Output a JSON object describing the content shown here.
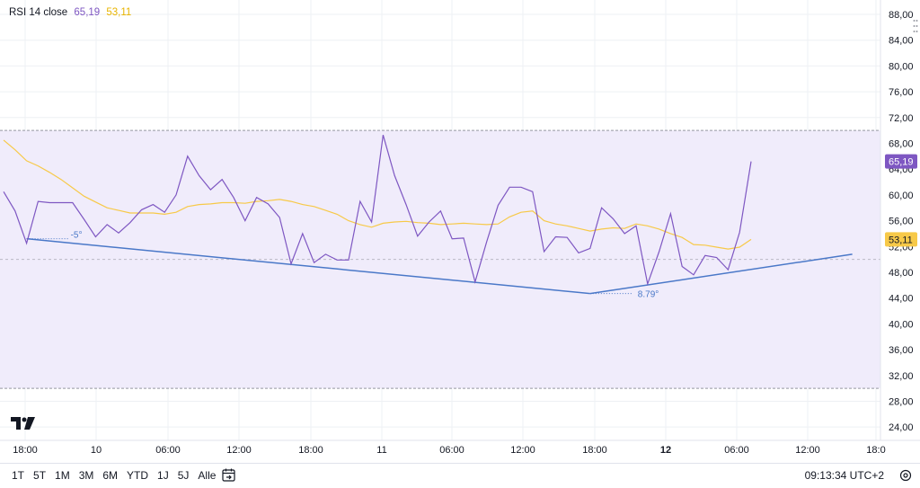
{
  "legend": {
    "label": "RSI 14 close",
    "rsi_value": "65,19",
    "ma_value": "53,11"
  },
  "colors": {
    "rsi": "#7e57c2",
    "ma": "#f7c948",
    "trendline": "#4a78c8",
    "band_fill": "#f0ecfb",
    "band_edge": "#9598a1",
    "grid": "#eef0f4",
    "axis_text": "#131722"
  },
  "badges": {
    "rsi_badge": "65,19",
    "ma_badge": "53,11"
  },
  "annotations": {
    "angle_1": "-5°",
    "angle_2": "8.79°"
  },
  "chart_data": {
    "type": "line",
    "y_ticks": [
      "24,00",
      "28,00",
      "32,00",
      "36,00",
      "40,00",
      "44,00",
      "48,00",
      "52,00",
      "56,00",
      "60,00",
      "64,00",
      "68,00",
      "72,00",
      "76,00",
      "80,00",
      "84,00",
      "88,00"
    ],
    "x_tick_labels": [
      "18:00",
      "10",
      "06:00",
      "12:00",
      "18:00",
      "11",
      "06:00",
      "12:00",
      "18:00",
      "12",
      "06:00",
      "12:00",
      "18:0"
    ],
    "bold_x_ticks": [
      "12"
    ],
    "bands": {
      "upper": 70,
      "lower": 30,
      "middle": 50
    },
    "series": [
      {
        "name": "RSI",
        "values": [
          60.5,
          57.5,
          52.5,
          59,
          58.8,
          58.8,
          58.8,
          56.2,
          53.5,
          55.4,
          54.1,
          55.7,
          57.7,
          58.5,
          57.3,
          60,
          66,
          63,
          60.8,
          62.4,
          59.6,
          56,
          59.6,
          58.6,
          56.5,
          49.3,
          54,
          49.5,
          50.8,
          49.9,
          49.9,
          59,
          55.8,
          69.3,
          63,
          58.5,
          53.6,
          55.8,
          57.5,
          53.2,
          53.3,
          46.5,
          52.7,
          58.4,
          61.2,
          61.2,
          60.5,
          51.2,
          53.5,
          53.4,
          51,
          51.7,
          58,
          56.3,
          54,
          55.2,
          46.2,
          51.2,
          57.1,
          48.9,
          47.6,
          50.6,
          50.3,
          48.4,
          54.2,
          65.2
        ]
      },
      {
        "name": "RSI MA",
        "values": [
          68.5,
          67,
          65.3,
          64.5,
          63.5,
          62.4,
          61.1,
          59.8,
          58.9,
          58,
          57.6,
          57.2,
          57.2,
          57.2,
          57,
          57.3,
          58.2,
          58.5,
          58.6,
          58.8,
          58.8,
          58.7,
          59,
          59.1,
          59.3,
          59,
          58.5,
          58.2,
          57.6,
          57,
          56,
          55.4,
          55,
          55.6,
          55.8,
          55.9,
          55.7,
          55.6,
          55.4,
          55.5,
          55.6,
          55.5,
          55.4,
          55.5,
          56.6,
          57.3,
          57.5,
          56,
          55.5,
          55.2,
          54.8,
          54.4,
          54.7,
          54.9,
          54.8,
          55.5,
          55.2,
          54.7,
          54,
          53.4,
          52.3,
          52.2,
          51.9,
          51.6,
          51.9,
          53.1
        ]
      }
    ],
    "trendline_points": [
      {
        "index": 2,
        "value": 53.2
      },
      {
        "index": 51,
        "value": 44.7
      },
      {
        "index": 73.8,
        "value": 50.8
      }
    ],
    "legend_placement": "top-left"
  },
  "bottom_bar": {
    "ranges": [
      "1T",
      "5T",
      "1M",
      "3M",
      "6M",
      "YTD",
      "1J",
      "5J",
      "Alle"
    ],
    "clock": "09:13:34 UTC+2"
  }
}
